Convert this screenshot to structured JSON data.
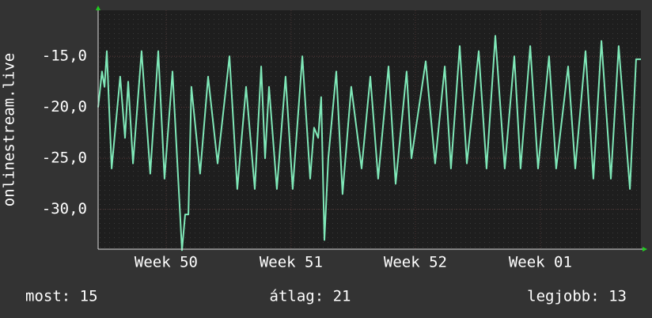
{
  "chart_data": {
    "type": "line",
    "y_label": "onlinestream.live",
    "x": [
      0,
      0.22,
      0.36,
      0.49,
      0.76,
      1.24,
      1.51,
      1.69,
      1.96,
      2.44,
      2.93,
      3.38,
      3.73,
      4.18,
      4.71,
      4.89,
      5.07,
      5.24,
      5.73,
      6.18,
      6.71,
      7.38,
      7.82,
      8.31,
      8.8,
      9.16,
      9.38,
      9.6,
      10.04,
      10.53,
      10.93,
      11.47,
      11.91,
      12.13,
      12.36,
      12.53,
      12.71,
      12.93,
      13.38,
      13.73,
      14.22,
      14.8,
      15.29,
      15.73,
      16.31,
      16.71,
      17.33,
      17.6,
      18.4,
      18.93,
      19.47,
      19.82,
      20.31,
      20.71,
      21.38,
      21.82,
      22.31,
      22.84,
      23.38,
      23.73,
      24.27,
      24.71,
      25.33,
      25.73,
      26.4,
      26.8,
      27.38,
      27.82,
      28.27,
      28.8,
      29.24,
      29.87,
      30.22,
      30.49
    ],
    "series": [
      {
        "name": "onlinestream.live",
        "color": "#7fe8b8",
        "values": [
          -20,
          -16.5,
          -18,
          -14.5,
          -26,
          -17,
          -23,
          -17.5,
          -25.5,
          -14.5,
          -26.5,
          -14.5,
          -27,
          -16.5,
          -34,
          -30.5,
          -30.5,
          -18,
          -26.5,
          -17,
          -25.5,
          -15,
          -28,
          -18,
          -28,
          -16,
          -25,
          -18,
          -28,
          -17,
          -28,
          -15,
          -27,
          -22,
          -23,
          -19,
          -33,
          -25,
          -16.5,
          -28.5,
          -18,
          -26,
          -17,
          -27,
          -16,
          -27.5,
          -16.5,
          -25,
          -15.5,
          -25.5,
          -16,
          -26,
          -14,
          -25.5,
          -14.5,
          -26,
          -13,
          -26,
          -15,
          -26,
          -14,
          -26,
          -15,
          -26,
          -16,
          -26,
          -14.5,
          -27,
          -13.5,
          -27,
          -14,
          -28,
          -15.3,
          -15.3
        ]
      }
    ],
    "xlim": [
      0,
      30.49
    ],
    "xticks": [
      {
        "value": 3.82,
        "label": "Week 50"
      },
      {
        "value": 10.84,
        "label": "Week 51"
      },
      {
        "value": 17.82,
        "label": "Week 52"
      },
      {
        "value": 24.84,
        "label": "Week 01"
      }
    ],
    "ylim": [
      -33.9,
      -10.5
    ],
    "yticks": [
      {
        "value": -15,
        "label": "-15,0"
      },
      {
        "value": -20,
        "label": "-20,0"
      },
      {
        "value": -25,
        "label": "-25,0"
      },
      {
        "value": -30,
        "label": "-30,0"
      }
    ],
    "grid": true,
    "footer": [
      "most: 15",
      "átlag: 21",
      "legjobb: 13"
    ]
  }
}
